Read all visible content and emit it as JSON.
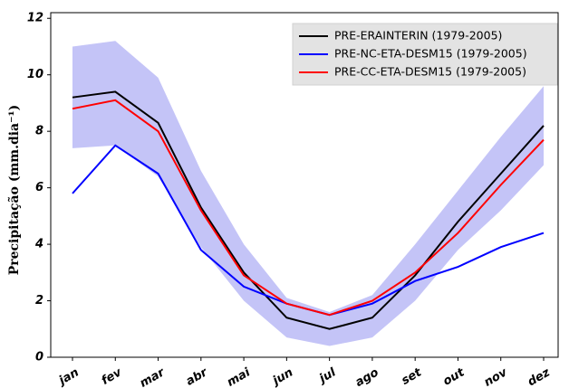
{
  "chart_data": {
    "type": "line",
    "ylabel": "Precipitação (mm.dia⁻¹)",
    "categories": [
      "jan",
      "fev",
      "mar",
      "abr",
      "mai",
      "jun",
      "jul",
      "ago",
      "set",
      "out",
      "nov",
      "dez"
    ],
    "series": [
      {
        "name": "PRE-ERAINTERIN (1979-2005)",
        "color": "#000000",
        "values": [
          9.2,
          9.4,
          8.3,
          5.3,
          3.0,
          1.4,
          1.0,
          1.4,
          2.9,
          4.8,
          6.5,
          8.2
        ]
      },
      {
        "name": "PRE-NC-ETA-DESM15 (1979-2005)",
        "color": "#0000ff",
        "values": [
          5.8,
          7.5,
          6.5,
          3.8,
          2.5,
          1.9,
          1.5,
          1.9,
          2.7,
          3.2,
          3.9,
          4.4
        ]
      },
      {
        "name": "PRE-CC-ETA-DESM15 (1979-2005)",
        "color": "#ff0000",
        "values": [
          8.8,
          9.1,
          8.0,
          5.2,
          2.9,
          1.9,
          1.5,
          2.0,
          3.0,
          4.4,
          6.1,
          7.7
        ]
      }
    ],
    "band": {
      "color": "#c4c4f7",
      "upper": [
        11.0,
        11.2,
        9.9,
        6.6,
        4.0,
        2.1,
        1.6,
        2.2,
        4.0,
        5.9,
        7.8,
        9.6
      ],
      "lower": [
        7.4,
        7.5,
        6.4,
        3.9,
        2.0,
        0.7,
        0.4,
        0.7,
        2.0,
        3.8,
        5.2,
        6.8
      ]
    },
    "ylim": [
      0,
      12.2
    ],
    "yticks": [
      0,
      2,
      4,
      6,
      8,
      10,
      12
    ],
    "legend": "upper right"
  }
}
